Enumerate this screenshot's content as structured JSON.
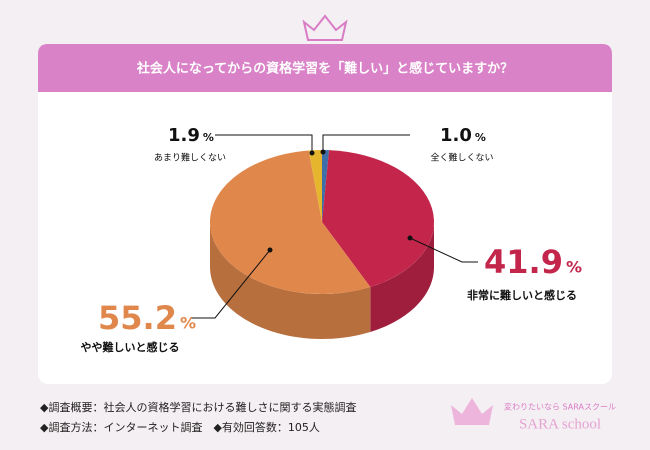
{
  "chart_data": {
    "type": "pie",
    "title": "社会人になってからの資格学習を「難しい」と感じていますか？",
    "categories": [
      "全く難しくない",
      "非常に難しいと感じる",
      "やや難しいと感じる",
      "あまり難しくない"
    ],
    "values": [
      1.0,
      41.9,
      55.2,
      1.9
    ],
    "value_labels": [
      "1.0",
      "41.9",
      "55.2",
      "1.9"
    ],
    "unit": "%",
    "colors": [
      "#3d6fa8",
      "#c3254b",
      "#e0874c",
      "#e6b52e"
    ]
  },
  "notes": [
    "◆調査概要：社会人の資格学習における難しさに関する実態調査",
    "◆調査方法：インターネット調査　◆有効回答数：105人"
  ],
  "logo": {
    "tagline": "変わりたいなら SARAスクール",
    "name": "SARA school"
  }
}
